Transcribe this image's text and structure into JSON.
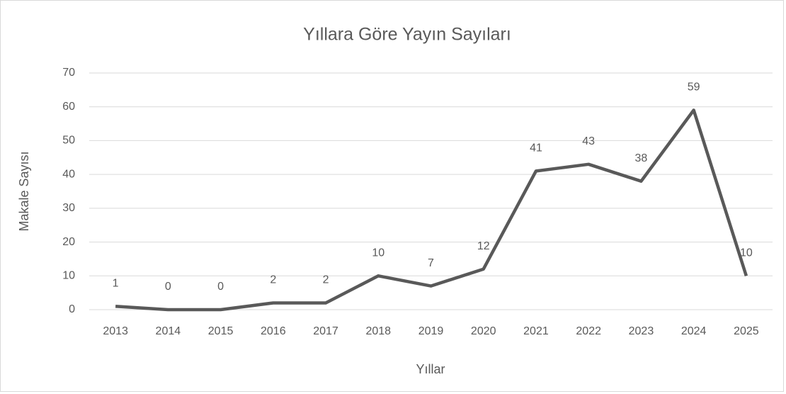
{
  "chart_data": {
    "type": "line",
    "title": "Yıllara Göre Yayın Sayıları",
    "x_label": "Yıllar",
    "y_label": "Makale Sayısı",
    "categories": [
      "2013",
      "2014",
      "2015",
      "2016",
      "2017",
      "2018",
      "2019",
      "2020",
      "2021",
      "2022",
      "2023",
      "2024",
      "2025"
    ],
    "series": [
      {
        "name": "Makale Sayısı",
        "color": "#595959",
        "values": [
          1,
          0,
          0,
          2,
          2,
          10,
          7,
          12,
          41,
          43,
          38,
          59,
          10
        ]
      }
    ],
    "ylim": [
      0,
      70
    ],
    "yticks": [
      0,
      10,
      20,
      30,
      40,
      50,
      60,
      70
    ],
    "grid": true,
    "data_labels": true
  }
}
